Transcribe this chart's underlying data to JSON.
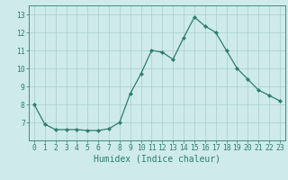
{
  "x": [
    0,
    1,
    2,
    3,
    4,
    5,
    6,
    7,
    8,
    9,
    10,
    11,
    12,
    13,
    14,
    15,
    16,
    17,
    18,
    19,
    20,
    21,
    22,
    23
  ],
  "y": [
    8.0,
    6.9,
    6.6,
    6.6,
    6.6,
    6.55,
    6.55,
    6.65,
    7.0,
    8.6,
    9.7,
    11.0,
    10.9,
    10.5,
    11.7,
    12.85,
    12.35,
    12.0,
    11.0,
    10.0,
    9.4,
    8.8,
    8.5,
    8.2
  ],
  "line_color": "#2e7d6e",
  "marker": "D",
  "marker_size": 2.2,
  "bg_color": "#ceeaea",
  "grid_color": "#aacece",
  "xlabel": "Humidex (Indice chaleur)",
  "ylim": [
    6.0,
    13.5
  ],
  "xlim": [
    -0.5,
    23.5
  ],
  "yticks": [
    7,
    8,
    9,
    10,
    11,
    12,
    13
  ],
  "xticks": [
    0,
    1,
    2,
    3,
    4,
    5,
    6,
    7,
    8,
    9,
    10,
    11,
    12,
    13,
    14,
    15,
    16,
    17,
    18,
    19,
    20,
    21,
    22,
    23
  ],
  "tick_label_fontsize": 5.8,
  "xlabel_fontsize": 7.0,
  "linewidth": 0.9
}
